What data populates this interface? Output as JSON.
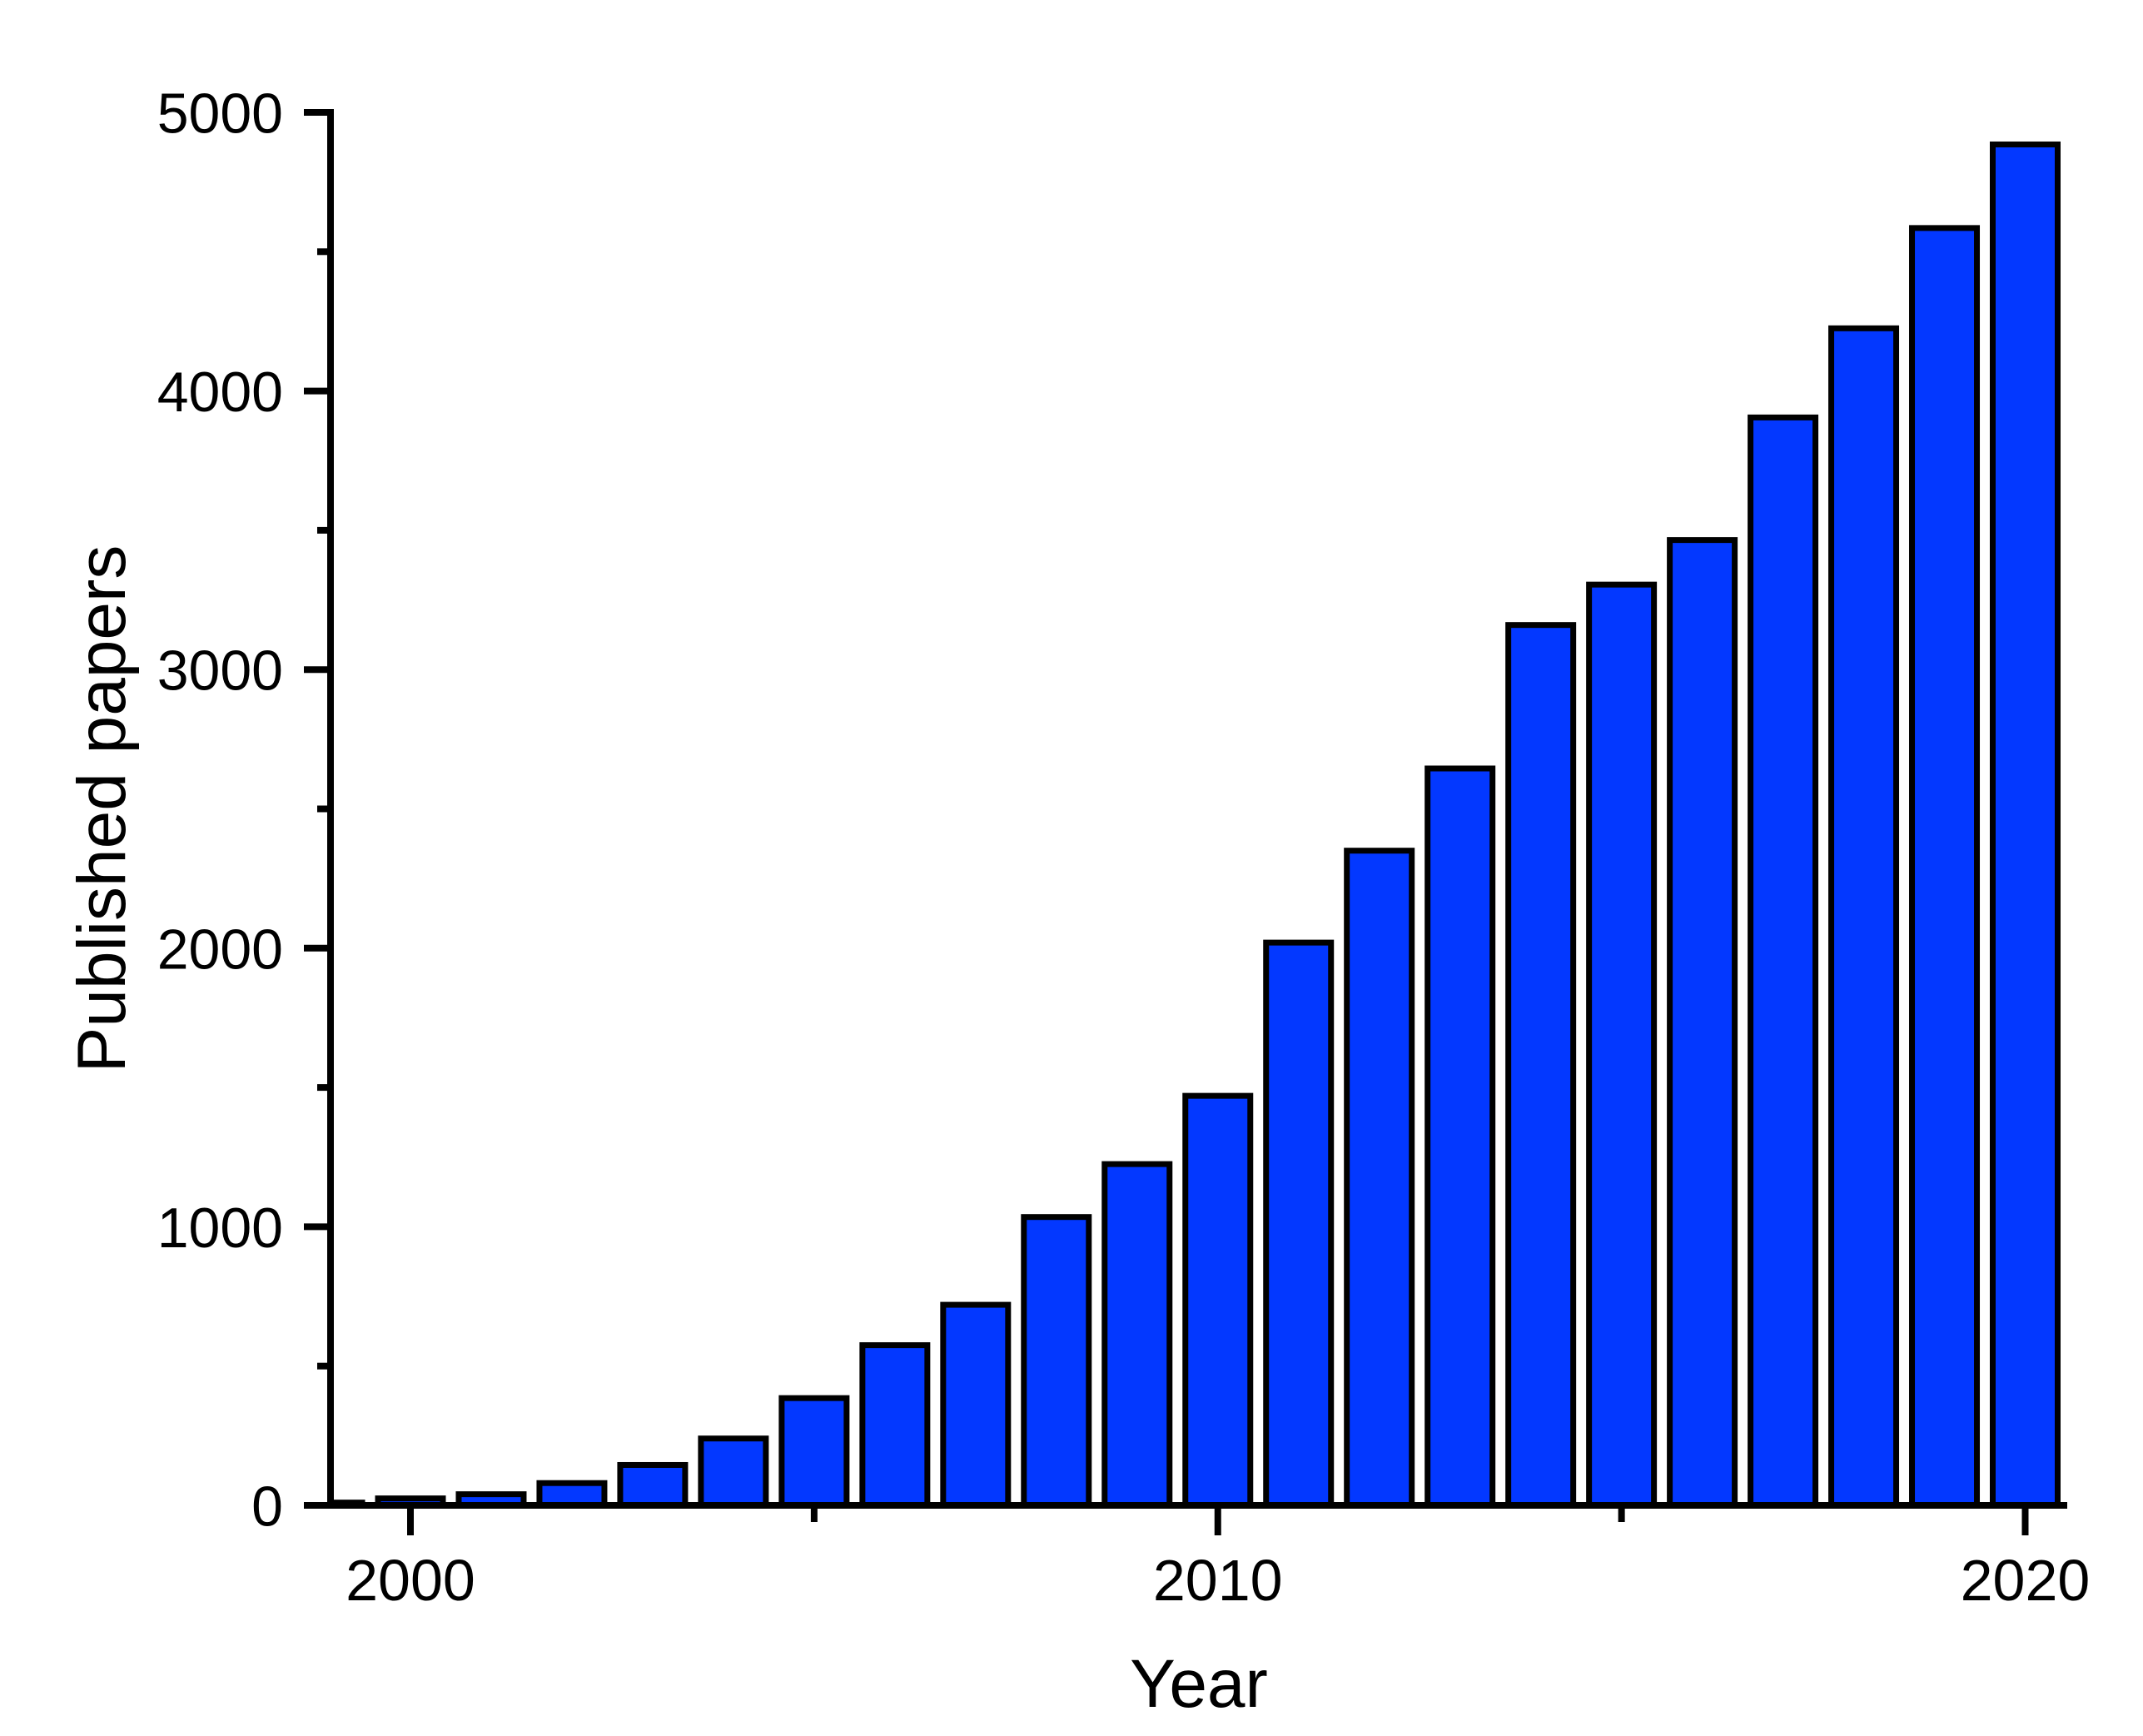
{
  "chart_data": {
    "type": "bar",
    "title": "",
    "xlabel": "Year",
    "ylabel": "Published papers",
    "categories": [
      1999,
      2000,
      2001,
      2002,
      2003,
      2004,
      2005,
      2006,
      2007,
      2008,
      2009,
      2010,
      2011,
      2012,
      2013,
      2014,
      2015,
      2016,
      2017,
      2018,
      2019,
      2020
    ],
    "values": [
      10,
      25,
      40,
      80,
      145,
      240,
      385,
      575,
      720,
      1035,
      1225,
      1470,
      2020,
      2350,
      2645,
      3160,
      3305,
      3465,
      3905,
      4225,
      4585,
      4885
    ],
    "ylim": [
      0,
      5000
    ],
    "xlim": [
      1999,
      2020.5
    ],
    "yticks_major": [
      0,
      1000,
      2000,
      3000,
      4000,
      5000
    ],
    "ytick_minor_step": 500,
    "xticks_major": [
      2000,
      2010,
      2020
    ],
    "xticks_minor": [
      2005,
      2015
    ],
    "grid": false,
    "legend": null,
    "bar_color": "#0338ff",
    "bar_edge_color": "#000000",
    "axis_color": "#000000",
    "background_color": "#ffffff"
  }
}
